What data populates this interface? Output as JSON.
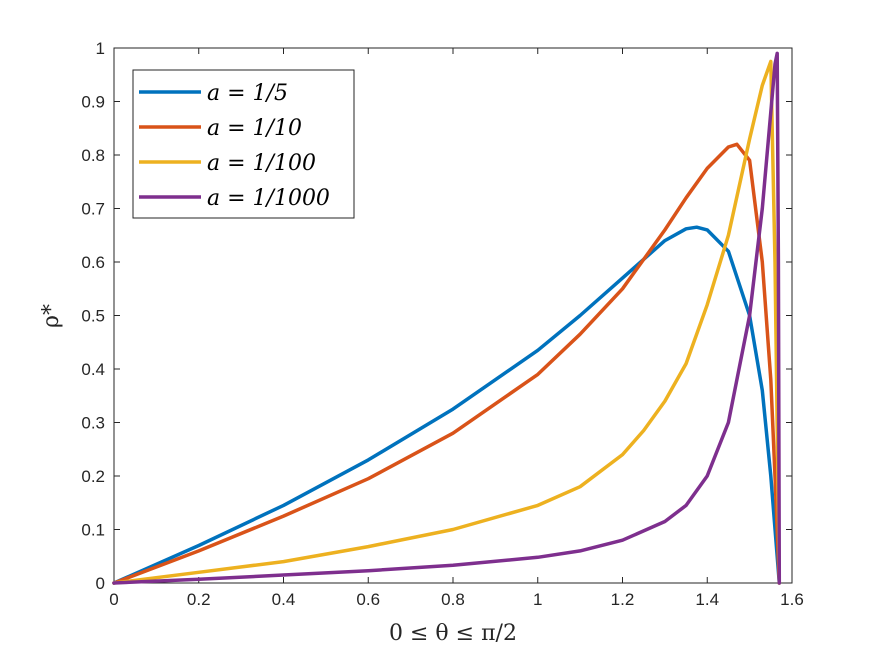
{
  "chart_data": {
    "type": "line",
    "title": "",
    "xlabel": "0 ≤ θ ≤ π/2",
    "ylabel": "ρ*",
    "xlim": [
      0,
      1.6
    ],
    "ylim": [
      0,
      1
    ],
    "xticks": [
      "0",
      "0.2",
      "0.4",
      "0.6",
      "0.8",
      "1",
      "1.2",
      "1.4",
      "1.6"
    ],
    "yticks": [
      "0",
      "0.1",
      "0.2",
      "0.3",
      "0.4",
      "0.5",
      "0.6",
      "0.7",
      "0.8",
      "0.9",
      "1"
    ],
    "grid": false,
    "legend_position": "top-left",
    "series": [
      {
        "name": "a = 1/5",
        "color": "#0072BD",
        "x": [
          0,
          0.2,
          0.4,
          0.6,
          0.8,
          1.0,
          1.1,
          1.2,
          1.25,
          1.3,
          1.35,
          1.375,
          1.4,
          1.45,
          1.5,
          1.53,
          1.55,
          1.57
        ],
        "y": [
          0,
          0.07,
          0.145,
          0.23,
          0.325,
          0.435,
          0.5,
          0.57,
          0.605,
          0.64,
          0.662,
          0.665,
          0.66,
          0.62,
          0.5,
          0.36,
          0.2,
          0
        ]
      },
      {
        "name": "a = 1/10",
        "color": "#D95319",
        "x": [
          0,
          0.2,
          0.4,
          0.6,
          0.8,
          1.0,
          1.1,
          1.2,
          1.3,
          1.35,
          1.4,
          1.45,
          1.47,
          1.5,
          1.53,
          1.55,
          1.56,
          1.57
        ],
        "y": [
          0,
          0.06,
          0.125,
          0.195,
          0.28,
          0.39,
          0.465,
          0.55,
          0.66,
          0.72,
          0.775,
          0.815,
          0.82,
          0.79,
          0.6,
          0.38,
          0.2,
          0
        ]
      },
      {
        "name": "a = 1/100",
        "color": "#EDB120",
        "x": [
          0,
          0.2,
          0.4,
          0.6,
          0.8,
          1.0,
          1.1,
          1.2,
          1.25,
          1.3,
          1.35,
          1.4,
          1.45,
          1.5,
          1.53,
          1.55,
          1.56,
          1.57
        ],
        "y": [
          0,
          0.02,
          0.04,
          0.068,
          0.1,
          0.145,
          0.18,
          0.24,
          0.285,
          0.34,
          0.41,
          0.52,
          0.65,
          0.83,
          0.93,
          0.975,
          0.6,
          0
        ]
      },
      {
        "name": "a = 1/1000",
        "color": "#7E2F8E",
        "x": [
          0,
          0.2,
          0.4,
          0.6,
          0.8,
          1.0,
          1.1,
          1.2,
          1.3,
          1.35,
          1.4,
          1.45,
          1.5,
          1.53,
          1.55,
          1.56,
          1.565,
          1.568,
          1.57
        ],
        "y": [
          0,
          0.007,
          0.015,
          0.023,
          0.033,
          0.048,
          0.06,
          0.08,
          0.115,
          0.145,
          0.2,
          0.3,
          0.5,
          0.7,
          0.88,
          0.97,
          0.99,
          0.6,
          0
        ]
      }
    ]
  }
}
